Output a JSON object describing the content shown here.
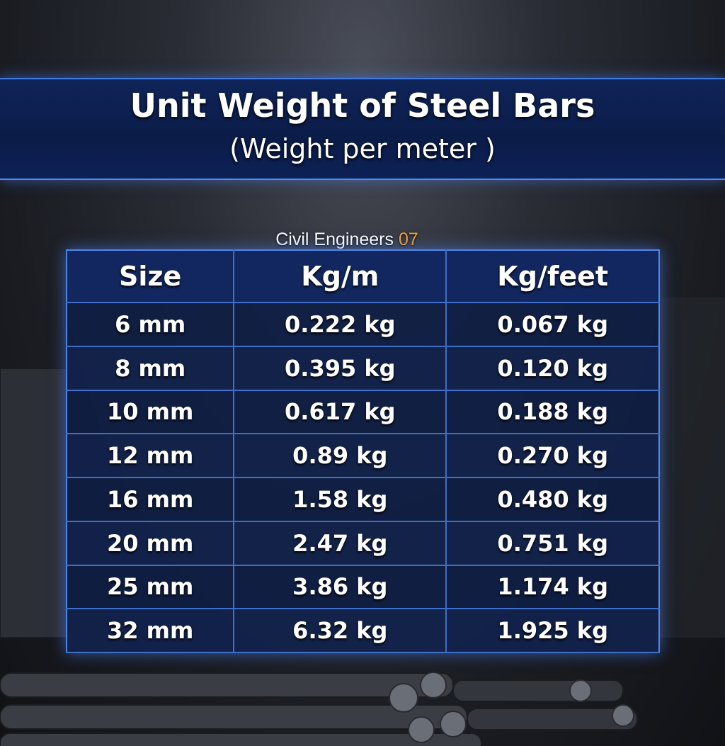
{
  "header": {
    "title": "Unit Weight of Steel Bars",
    "subtitle": "(Weight per meter )"
  },
  "watermark": {
    "name": "Civil Engineers",
    "number": "07"
  },
  "table": {
    "columns": [
      "Size",
      "Kg/m",
      "Kg/feet"
    ],
    "rows": [
      [
        "6 mm",
        "0.222 kg",
        "0.067 kg"
      ],
      [
        "8 mm",
        "0.395 kg",
        "0.120 kg"
      ],
      [
        "10 mm",
        "0.617 kg",
        "0.188 kg"
      ],
      [
        "12 mm",
        "0.89 kg",
        "0.270 kg"
      ],
      [
        "16 mm",
        "1.58 kg",
        "0.480 kg"
      ],
      [
        "20 mm",
        "2.47 kg",
        "0.751 kg"
      ],
      [
        "25 mm",
        "3.86 kg",
        "1.174 kg"
      ],
      [
        "32 mm",
        "6.32 kg",
        "1.925 kg"
      ]
    ]
  }
}
